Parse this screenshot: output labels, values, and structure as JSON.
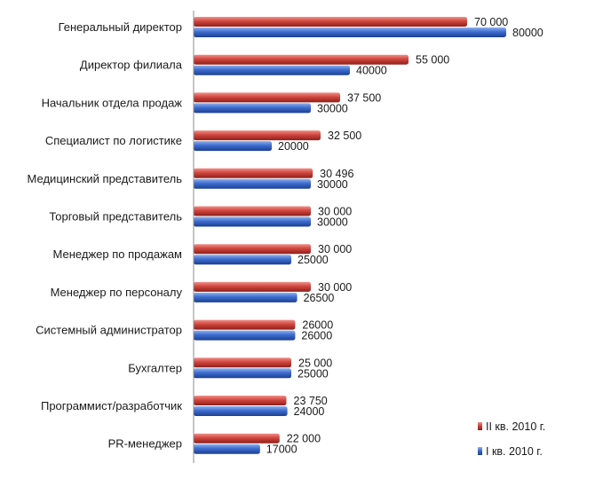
{
  "colors": {
    "series_q2": "#c0392b",
    "series_q1": "#2e5cb8",
    "axis": "#8c8c8c"
  },
  "chart_data": {
    "type": "bar",
    "orientation": "horizontal",
    "categories": [
      "Генеральный директор",
      "Директор филиала",
      "Начальник отдела продаж",
      "Специалист по логистике",
      "Медицинский представитель",
      "Торговый представитель",
      "Менеджер по продажам",
      "Менеджер по персоналу",
      "Системный администратор",
      "Бухгалтер",
      "Программист/разработчик",
      "PR-менеджер"
    ],
    "series": [
      {
        "name": "II кв. 2010 г.",
        "values": [
          70000,
          55000,
          37500,
          32500,
          30496,
          30000,
          30000,
          30000,
          26000,
          25000,
          23750,
          22000
        ],
        "labels": [
          "70 000",
          "55 000",
          "37 500",
          "32 500",
          "30 496",
          "30 000",
          "30 000",
          "30 000",
          "26000",
          "25 000",
          "23 750",
          "22 000"
        ]
      },
      {
        "name": "I кв. 2010 г.",
        "values": [
          80000,
          40000,
          30000,
          20000,
          30000,
          30000,
          25000,
          26500,
          26000,
          25000,
          24000,
          17000
        ],
        "labels": [
          "80000",
          "40000",
          "30000",
          "20000",
          "30000",
          "30000",
          "25000",
          "26500",
          "26000",
          "25000",
          "24000",
          "17000"
        ]
      }
    ],
    "xlim": [
      0,
      80000
    ],
    "grid": false,
    "legend_position": "bottom-right"
  }
}
